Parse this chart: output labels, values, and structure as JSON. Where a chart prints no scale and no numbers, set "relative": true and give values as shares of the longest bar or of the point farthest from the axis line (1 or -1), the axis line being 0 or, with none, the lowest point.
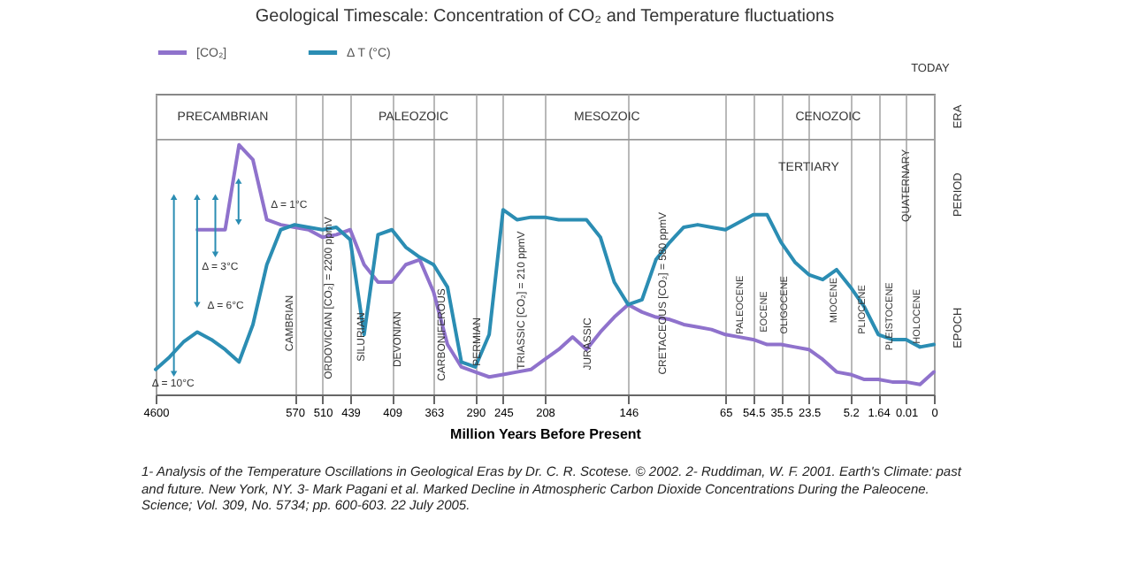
{
  "chart_data": {
    "type": "line",
    "title": "Geological Timescale: Concentration of CO₂ and Temperature fluctuations",
    "xlabel": "Million Years Before Present",
    "relative": true,
    "categories": [
      "4600",
      null,
      null,
      null,
      null,
      null,
      null,
      null,
      null,
      null,
      "570",
      null,
      "510",
      null,
      "439",
      null,
      null,
      "409",
      null,
      null,
      "363",
      null,
      null,
      "290",
      null,
      "245",
      null,
      null,
      "208",
      null,
      null,
      null,
      null,
      null,
      "146",
      null,
      null,
      null,
      null,
      null,
      null,
      "65",
      null,
      "54.5",
      null,
      "35.5",
      null,
      "23.5",
      null,
      null,
      "5.2",
      null,
      "1.64",
      null,
      "0.01",
      null,
      "0"
    ],
    "grid": "x",
    "legend": "top left",
    "line_style": "solid",
    "series": [
      {
        "name": "[CO₂]",
        "color": "#8f72cc",
        "values": [
          null,
          null,
          null,
          0.66,
          0.66,
          0.66,
          1.0,
          0.94,
          0.7,
          0.68,
          0.67,
          0.66,
          0.63,
          0.64,
          0.66,
          0.52,
          0.45,
          0.45,
          0.52,
          0.54,
          0.41,
          0.2,
          0.11,
          0.09,
          0.07,
          0.08,
          0.09,
          0.1,
          0.14,
          0.18,
          0.23,
          0.18,
          0.25,
          0.31,
          0.36,
          0.33,
          0.31,
          0.3,
          0.28,
          0.27,
          0.26,
          0.24,
          0.23,
          0.22,
          0.2,
          0.2,
          0.19,
          0.18,
          0.14,
          0.09,
          0.08,
          0.06,
          0.06,
          0.05,
          0.05,
          0.04,
          0.09
        ]
      },
      {
        "name": "Δ T (°C)",
        "color": "#2b8db3",
        "values": [
          0.1,
          0.15,
          0.21,
          0.25,
          0.22,
          0.18,
          0.13,
          0.28,
          0.52,
          0.66,
          0.68,
          0.67,
          0.66,
          0.67,
          0.62,
          0.24,
          0.64,
          0.66,
          0.59,
          0.55,
          0.52,
          0.43,
          0.13,
          0.11,
          0.24,
          0.74,
          0.7,
          0.71,
          0.71,
          0.7,
          0.7,
          0.7,
          0.63,
          0.45,
          0.36,
          0.38,
          0.54,
          0.61,
          0.67,
          0.68,
          0.67,
          0.66,
          0.69,
          0.72,
          0.72,
          0.61,
          0.53,
          0.48,
          0.46,
          0.5,
          0.43,
          0.35,
          0.24,
          0.22,
          0.22,
          0.19,
          0.2
        ]
      }
    ],
    "annotations": [
      "PRECAMBRIAN",
      "PALEOZOIC",
      "MESOZOIC",
      "CENOZOIC",
      "ERA",
      "PERIOD",
      "EPOCH",
      "TODAY",
      "TERTIARY",
      "QUATERNARY",
      "CAMBRIAN",
      "ORDOVICIAN [CO₂] = 2200 ppmV",
      "SILURIAN",
      "DEVONIAN",
      "CARBONIFEROUS",
      "PERMIAN",
      "TRIASSIC [CO₂] = 210 ppmV",
      "JURASSIC",
      "CRETACEOUS [CO₂] = 580 ppmV",
      "PALEOCENE",
      "EOCENE",
      "OLIGOCENE",
      "MIOCENE",
      "PLIOCENE",
      "PLEISTOCENE",
      "HOLOCENE",
      "Δ = 1°C",
      "Δ = 3°C",
      "Δ = 6°C",
      "Δ = 10°C",
      "1- Analysis of the Temperature Oscillations in Geological Eras by Dr. C. R. Scotese. © 2002. 2- Ruddiman, W. F. 2001. Earth's Climate: past and future. New York, NY. 3- Mark Pagani et al. Marked Decline in Atmospheric Carbon Dioxide Concentrations During the Paleocene. Science; Vol. 309, No. 5734; pp. 600-603. 22 July 2005."
    ]
  }
}
